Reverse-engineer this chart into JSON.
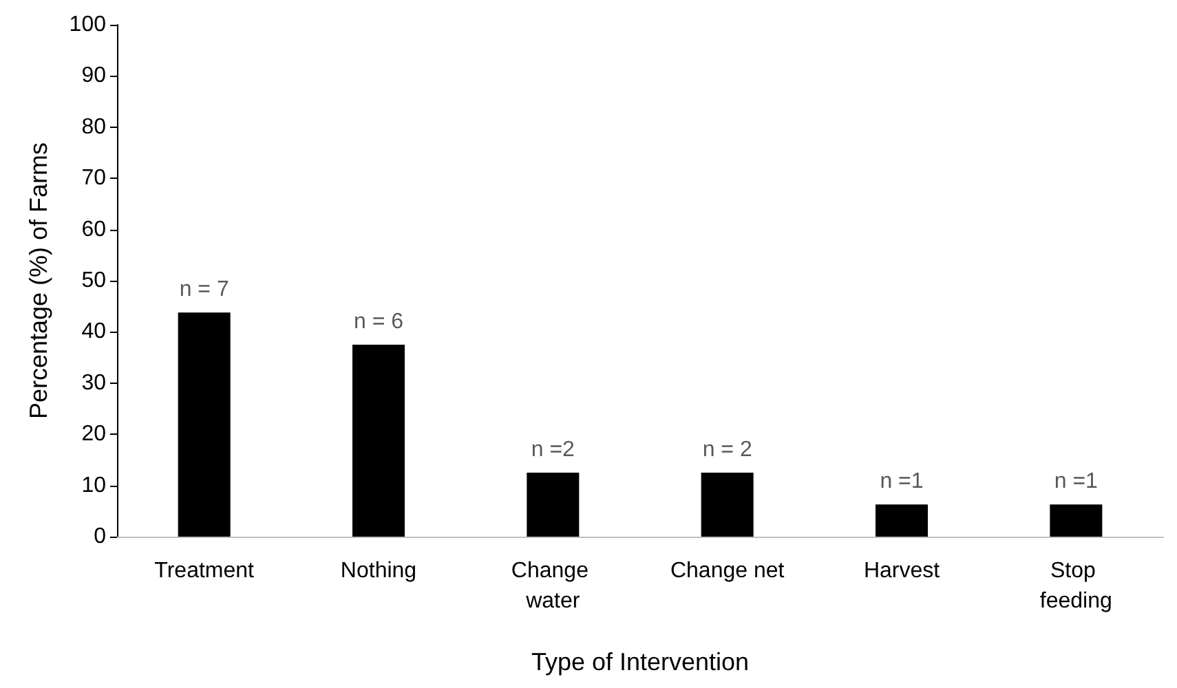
{
  "chart_data": {
    "type": "bar",
    "xlabel": "Type of Intervention",
    "ylabel": "Percentage (%) of Farms",
    "categories": [
      "Treatment",
      "Nothing",
      "Change water",
      "Change net",
      "Harvest",
      "Stop feeding"
    ],
    "values": [
      43.8,
      37.5,
      12.5,
      12.5,
      6.3,
      6.3
    ],
    "annotations": [
      {
        "text": "n = 7",
        "x": "Treatment",
        "y": 43.8
      },
      {
        "text": "n = 6",
        "x": "Nothing",
        "y": 37.5
      },
      {
        "text": "n =2",
        "x": "Change water",
        "y": 12.5
      },
      {
        "text": "n = 2",
        "x": "Change net",
        "y": 12.5
      },
      {
        "text": "n =1",
        "x": "Harvest",
        "y": 6.3
      },
      {
        "text": "n =1",
        "x": "Stop feeding",
        "y": 6.3
      }
    ],
    "color": "#000000",
    "ylim": [
      0,
      100
    ],
    "yticks": [
      0,
      10,
      20,
      30,
      40,
      50,
      60,
      70,
      80,
      90,
      100
    ],
    "grid": false
  }
}
